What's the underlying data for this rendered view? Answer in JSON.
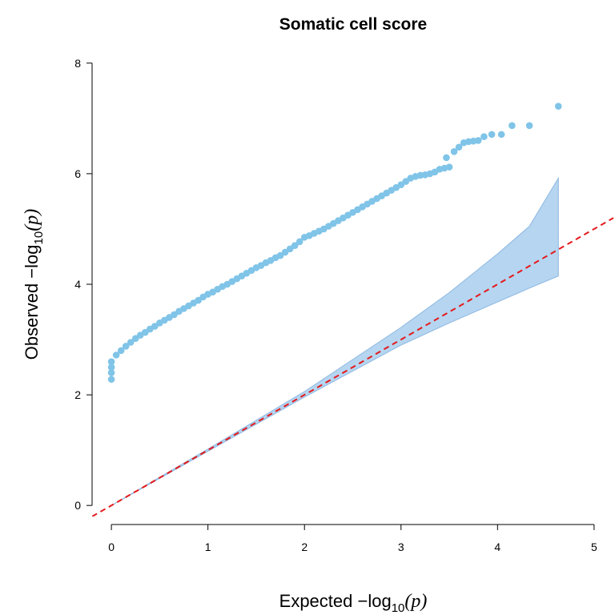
{
  "chart_data": {
    "type": "scatter",
    "title": "Somatic cell score",
    "xlabel": [
      "Expected  −log",
      "10",
      "(p)"
    ],
    "ylabel": [
      "Observed  −log",
      "10",
      "(p)"
    ],
    "color": "#80c4e8",
    "x": [
      0,
      0,
      0,
      0,
      0.05,
      0.1,
      0.15,
      0.2,
      0.25,
      0.3,
      0.35,
      0.4,
      0.45,
      0.5,
      0.55,
      0.6,
      0.65,
      0.7,
      0.75,
      0.8,
      0.85,
      0.9,
      0.95,
      1.0,
      1.05,
      1.1,
      1.15,
      1.2,
      1.25,
      1.3,
      1.35,
      1.4,
      1.45,
      1.5,
      1.55,
      1.6,
      1.65,
      1.7,
      1.75,
      1.8,
      1.85,
      1.9,
      1.95,
      2.0,
      2.05,
      2.1,
      2.15,
      2.2,
      2.25,
      2.3,
      2.35,
      2.4,
      2.45,
      2.5,
      2.55,
      2.6,
      2.65,
      2.7,
      2.75,
      2.8,
      2.85,
      2.9,
      2.95,
      3.0,
      3.05,
      3.1,
      3.15,
      3.2,
      3.25,
      3.3,
      3.35,
      3.4,
      3.45,
      3.5,
      3.47,
      3.55,
      3.6,
      3.65,
      3.7,
      3.75,
      3.8,
      3.86,
      3.94,
      4.04,
      4.15,
      4.33,
      4.63
    ],
    "y": [
      2.28,
      2.4,
      2.5,
      2.6,
      2.72,
      2.8,
      2.88,
      2.95,
      3.02,
      3.08,
      3.13,
      3.19,
      3.24,
      3.3,
      3.35,
      3.4,
      3.45,
      3.51,
      3.56,
      3.61,
      3.66,
      3.71,
      3.77,
      3.82,
      3.86,
      3.91,
      3.96,
      4.0,
      4.05,
      4.1,
      4.15,
      4.2,
      4.25,
      4.3,
      4.34,
      4.39,
      4.43,
      4.48,
      4.52,
      4.58,
      4.64,
      4.7,
      4.77,
      4.85,
      4.88,
      4.92,
      4.96,
      5.0,
      5.05,
      5.1,
      5.15,
      5.2,
      5.25,
      5.3,
      5.35,
      5.4,
      5.45,
      5.5,
      5.55,
      5.6,
      5.65,
      5.7,
      5.75,
      5.8,
      5.86,
      5.92,
      5.95,
      5.97,
      5.98,
      6.0,
      6.03,
      6.08,
      6.1,
      6.12,
      6.29,
      6.4,
      6.48,
      6.56,
      6.58,
      6.59,
      6.6,
      6.67,
      6.71,
      6.71,
      6.87,
      6.87,
      7.22
    ],
    "band": {
      "color": "#b5d5f0",
      "x": [
        0,
        1,
        2,
        3,
        3.5,
        4,
        4.33,
        4.63
      ],
      "upper": [
        0,
        1.02,
        2.06,
        3.22,
        3.85,
        4.55,
        5.05,
        5.92
      ],
      "lower": [
        0,
        0.98,
        1.96,
        2.9,
        3.3,
        3.68,
        3.93,
        4.15
      ]
    },
    "reference_line": {
      "slope": 1,
      "intercept": 0,
      "color": "#e41a1c"
    },
    "xlim": [
      -0.2,
      5.2
    ],
    "ylim": [
      -0.2,
      8.2
    ],
    "xticks": [
      0,
      1,
      2,
      3,
      4,
      5
    ],
    "yticks": [
      0,
      2,
      4,
      6,
      8
    ]
  }
}
